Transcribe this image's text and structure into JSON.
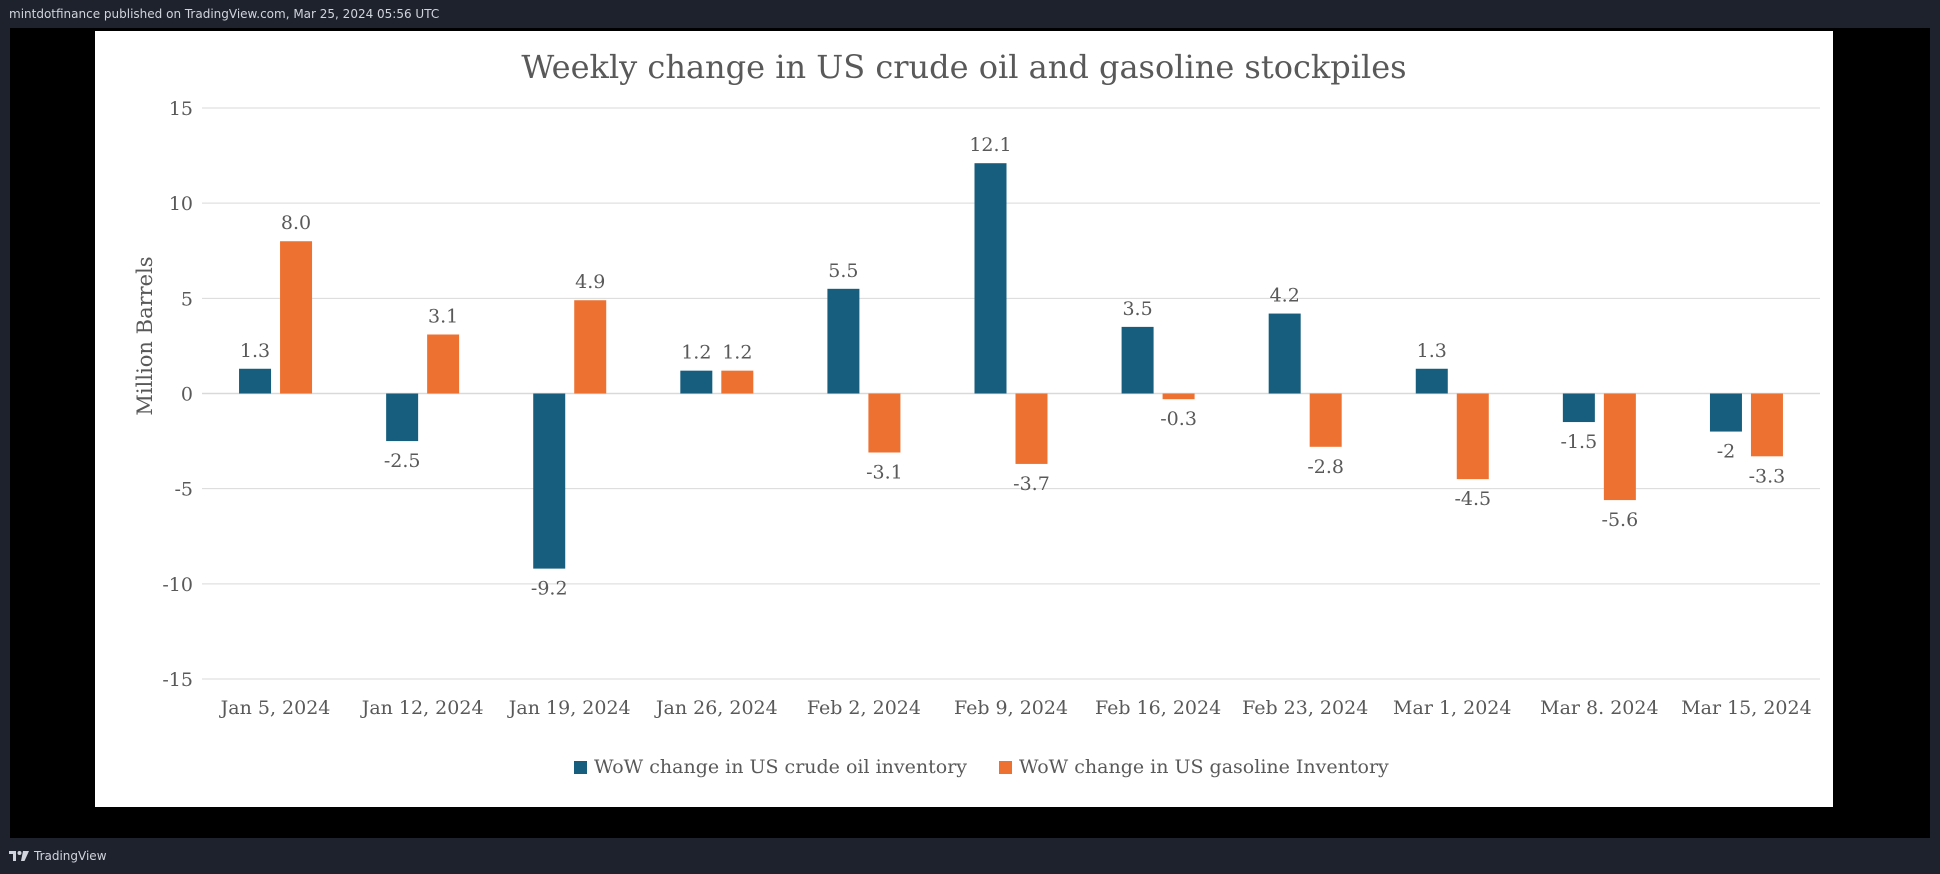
{
  "publish_line": "mintdotfinance published on TradingView.com, Mar 25, 2024 05:56 UTC",
  "footer": {
    "brand": "TradingView",
    "logo_icon": "tradingview-logo-icon"
  },
  "colors": {
    "crude": "#175e7e",
    "gasoline": "#ed7131",
    "grid": "#d9d9d9",
    "text": "#595959"
  },
  "chart_data": {
    "type": "bar",
    "title": "Weekly change in US crude oil and gasoline stockpiles",
    "xlabel": "",
    "ylabel": "Million Barrels",
    "ylim": [
      -15,
      15
    ],
    "yticks": [
      15,
      10,
      5,
      0,
      -5,
      -10,
      -15
    ],
    "grid": true,
    "legend": "bottom",
    "categories": [
      "Jan 5, 2024",
      "Jan 12, 2024",
      "Jan 19, 2024",
      "Jan 26, 2024",
      "Feb 2, 2024",
      "Feb 9, 2024",
      "Feb 16, 2024",
      "Feb 23, 2024",
      "Mar 1, 2024",
      "Mar 8. 2024",
      "Mar 15, 2024"
    ],
    "series": [
      {
        "name": "WoW change in US crude oil inventory",
        "values": [
          1.3,
          -2.5,
          -9.2,
          1.2,
          5.5,
          12.1,
          3.5,
          4.2,
          1.3,
          -1.5,
          -2
        ],
        "labels": [
          "1.3",
          "-2.5",
          "-9.2",
          "1.2",
          "5.5",
          "12.1",
          "3.5",
          "4.2",
          "1.3",
          "-1.5",
          "-2"
        ]
      },
      {
        "name": "WoW change in US gasoline Inventory",
        "values": [
          8.0,
          3.1,
          4.9,
          1.2,
          -3.1,
          -3.7,
          -0.3,
          -2.8,
          -4.5,
          -5.6,
          -3.3
        ],
        "labels": [
          "8.0",
          "3.1",
          "4.9",
          "1.2",
          "-3.1",
          "-3.7",
          "-0.3",
          "-2.8",
          "-4.5",
          "-5.6",
          "-3.3"
        ]
      }
    ]
  }
}
